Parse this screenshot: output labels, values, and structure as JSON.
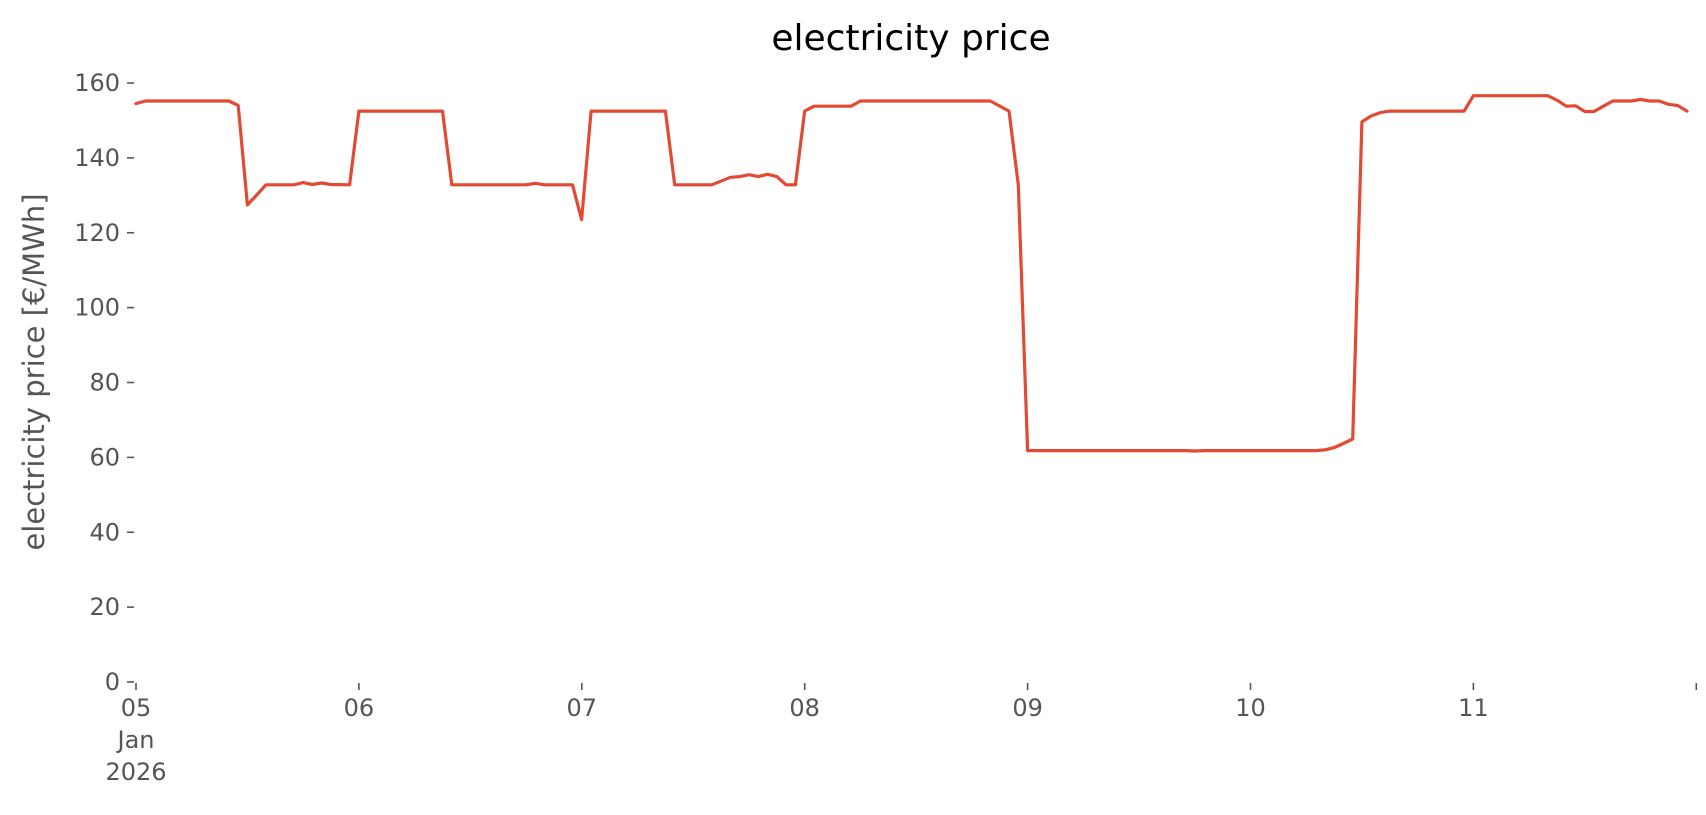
{
  "chart_data": {
    "type": "line",
    "title": "electricity price",
    "ylabel": "electricity price [€/MWh]",
    "xlabel": "",
    "ylim": [
      0,
      160
    ],
    "xlim": [
      "2026-01-05T00:00",
      "2026-01-11T23:00"
    ],
    "grid": false,
    "y_ticks": [
      0,
      20,
      40,
      60,
      80,
      100,
      120,
      140,
      160
    ],
    "x_ticks": [
      {
        "date": "2026-01-05T00:00",
        "lines": [
          "05",
          "Jan",
          "2026"
        ]
      },
      {
        "date": "2026-01-06T00:00",
        "lines": [
          "06"
        ]
      },
      {
        "date": "2026-01-07T00:00",
        "lines": [
          "07"
        ]
      },
      {
        "date": "2026-01-08T00:00",
        "lines": [
          "08"
        ]
      },
      {
        "date": "2026-01-09T00:00",
        "lines": [
          "09"
        ]
      },
      {
        "date": "2026-01-10T00:00",
        "lines": [
          "10"
        ]
      },
      {
        "date": "2026-01-11T00:00",
        "lines": [
          "11"
        ]
      },
      {
        "date": "2026-01-12T00:00",
        "lines": [
          ""
        ]
      }
    ],
    "series": [
      {
        "color": "#e24a33",
        "points": [
          [
            "2026-01-05T00:00",
            154.5
          ],
          [
            "2026-01-05T01:00",
            155.2
          ],
          [
            "2026-01-05T10:00",
            155.2
          ],
          [
            "2026-01-05T11:00",
            154.0
          ],
          [
            "2026-01-05T12:00",
            127.4
          ],
          [
            "2026-01-05T14:00",
            132.8
          ],
          [
            "2026-01-05T17:00",
            132.8
          ],
          [
            "2026-01-05T18:00",
            133.4
          ],
          [
            "2026-01-05T19:00",
            132.9
          ],
          [
            "2026-01-05T20:00",
            133.3
          ],
          [
            "2026-01-05T21:00",
            132.9
          ],
          [
            "2026-01-05T23:00",
            132.8
          ],
          [
            "2026-01-06T00:00",
            152.5
          ],
          [
            "2026-01-06T09:00",
            152.5
          ],
          [
            "2026-01-06T10:00",
            132.8
          ],
          [
            "2026-01-06T18:00",
            132.8
          ],
          [
            "2026-01-06T19:00",
            133.2
          ],
          [
            "2026-01-06T20:00",
            132.8
          ],
          [
            "2026-01-06T23:00",
            132.8
          ],
          [
            "2026-01-06T23:59",
            123.5
          ],
          [
            "2026-01-07T01:00",
            152.5
          ],
          [
            "2026-01-07T09:00",
            152.5
          ],
          [
            "2026-01-07T10:00",
            132.8
          ],
          [
            "2026-01-07T14:00",
            132.8
          ],
          [
            "2026-01-07T16:00",
            134.8
          ],
          [
            "2026-01-07T17:00",
            135.0
          ],
          [
            "2026-01-07T18:00",
            135.5
          ],
          [
            "2026-01-07T19:00",
            135.0
          ],
          [
            "2026-01-07T20:00",
            135.6
          ],
          [
            "2026-01-07T21:00",
            135.0
          ],
          [
            "2026-01-07T22:00",
            132.8
          ],
          [
            "2026-01-07T23:00",
            132.8
          ],
          [
            "2026-01-08T00:00",
            152.5
          ],
          [
            "2026-01-08T01:00",
            153.8
          ],
          [
            "2026-01-08T05:00",
            153.8
          ],
          [
            "2026-01-08T06:00",
            155.2
          ],
          [
            "2026-01-08T20:00",
            155.2
          ],
          [
            "2026-01-08T22:00",
            152.5
          ],
          [
            "2026-01-08T23:00",
            132.8
          ],
          [
            "2026-01-09T00:00",
            61.8
          ],
          [
            "2026-01-09T17:00",
            61.8
          ],
          [
            "2026-01-09T18:00",
            61.7
          ],
          [
            "2026-01-09T19:00",
            61.8
          ],
          [
            "2026-01-10T07:00",
            61.8
          ],
          [
            "2026-01-10T08:00",
            62.0
          ],
          [
            "2026-01-10T09:00",
            62.6
          ],
          [
            "2026-01-10T10:00",
            63.7
          ],
          [
            "2026-01-10T11:00",
            64.9
          ],
          [
            "2026-01-10T12:00",
            149.6
          ],
          [
            "2026-01-10T13:00",
            151.2
          ],
          [
            "2026-01-10T14:00",
            152.1
          ],
          [
            "2026-01-10T15:00",
            152.5
          ],
          [
            "2026-01-10T23:00",
            152.5
          ],
          [
            "2026-01-11T00:00",
            156.6
          ],
          [
            "2026-01-11T08:00",
            156.6
          ],
          [
            "2026-01-11T09:00",
            155.4
          ],
          [
            "2026-01-11T10:00",
            153.8
          ],
          [
            "2026-01-11T11:00",
            153.9
          ],
          [
            "2026-01-11T12:00",
            152.4
          ],
          [
            "2026-01-11T13:00",
            152.4
          ],
          [
            "2026-01-11T14:00",
            153.8
          ],
          [
            "2026-01-11T15:00",
            155.2
          ],
          [
            "2026-01-11T17:00",
            155.2
          ],
          [
            "2026-01-11T18:00",
            155.6
          ],
          [
            "2026-01-11T19:00",
            155.2
          ],
          [
            "2026-01-11T20:00",
            155.2
          ],
          [
            "2026-01-11T21:00",
            154.3
          ],
          [
            "2026-01-11T22:00",
            154.0
          ],
          [
            "2026-01-11T23:00",
            152.5
          ]
        ]
      }
    ]
  }
}
